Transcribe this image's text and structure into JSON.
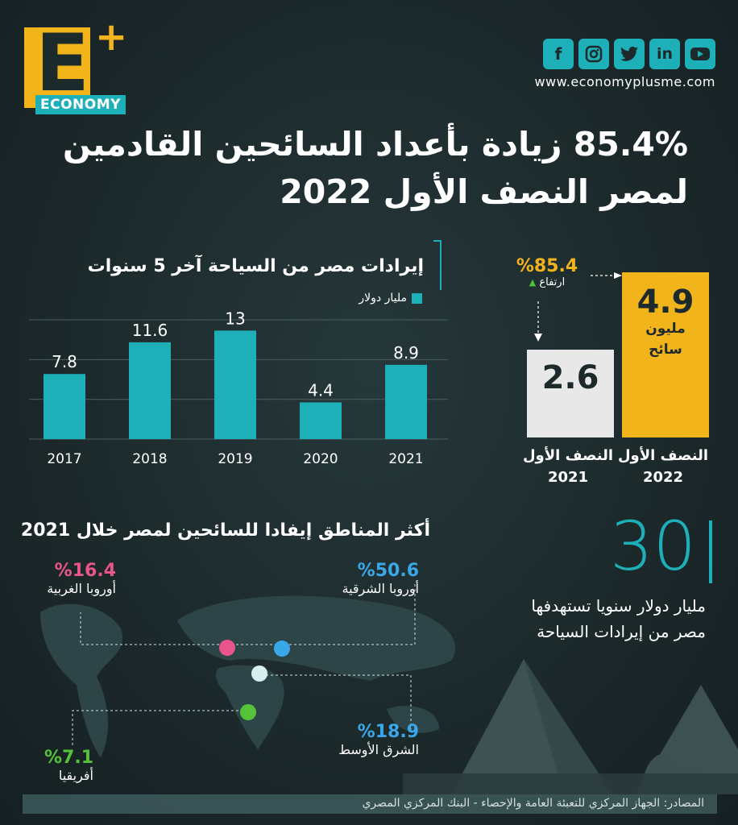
{
  "brand": {
    "logo_letter": "E",
    "logo_plus": "+",
    "logo_tag": "ECONOMY",
    "website": "www.economyplusme.com",
    "social_icons": [
      "facebook-icon",
      "instagram-icon",
      "twitter-icon",
      "linkedin-icon",
      "youtube-icon"
    ]
  },
  "headline": {
    "line1": "85.4% زيادة بأعداد السائحين القادمين",
    "line2": "لمصر النصف الأول 2022"
  },
  "chart_data": [
    {
      "type": "bar",
      "title": "إيرادات مصر من السياحة آخر 5 سنوات",
      "legend": "مليار دولار",
      "categories": [
        "2017",
        "2018",
        "2019",
        "2020",
        "2021"
      ],
      "values": [
        7.8,
        11.6,
        13,
        4.4,
        8.9
      ],
      "value_labels": [
        "7.8",
        "11.6",
        "13",
        "4.4",
        "8.9"
      ],
      "ylim": [
        0,
        14
      ],
      "grid": true,
      "color": "#1eb0b8"
    },
    {
      "type": "bar",
      "categories": [
        "النصف الأول 2021",
        "النصف الأول 2022"
      ],
      "values": [
        2.6,
        4.9
      ],
      "value_labels": [
        "2.6",
        "4.9"
      ],
      "unit_line1": "مليون",
      "unit_line2": "سائح",
      "label_line1": "النصف الأول",
      "years": [
        "2021",
        "2022"
      ],
      "growth_pct": "%85.4",
      "growth_label": "ارتفاع",
      "colors": [
        "#e8e8e8",
        "#f2b41b"
      ]
    }
  ],
  "regions": {
    "title": "أكثر المناطق إيفادا للسائحين لمصر خلال 2021",
    "items": [
      {
        "pct": "%50.6",
        "name": "أوروبا الشرقية",
        "color": "#3aa8e8"
      },
      {
        "pct": "%16.4",
        "name": "أوروبا الغربية",
        "color": "#e8558a"
      },
      {
        "pct": "%18.9",
        "name": "الشرق الأوسط",
        "color": "#d8eef0"
      },
      {
        "pct": "%7.1",
        "name": "أفريقيا",
        "color": "#56c23a"
      }
    ]
  },
  "target": {
    "value": "30",
    "text_line1": "مليار دولار سنويا تستهدفها",
    "text_line2": "مصر من إيرادات السياحة"
  },
  "source": "المصادر: الجهاز المركزي للتعبئة العامة والإحصاء - البنك المركزي المصري"
}
